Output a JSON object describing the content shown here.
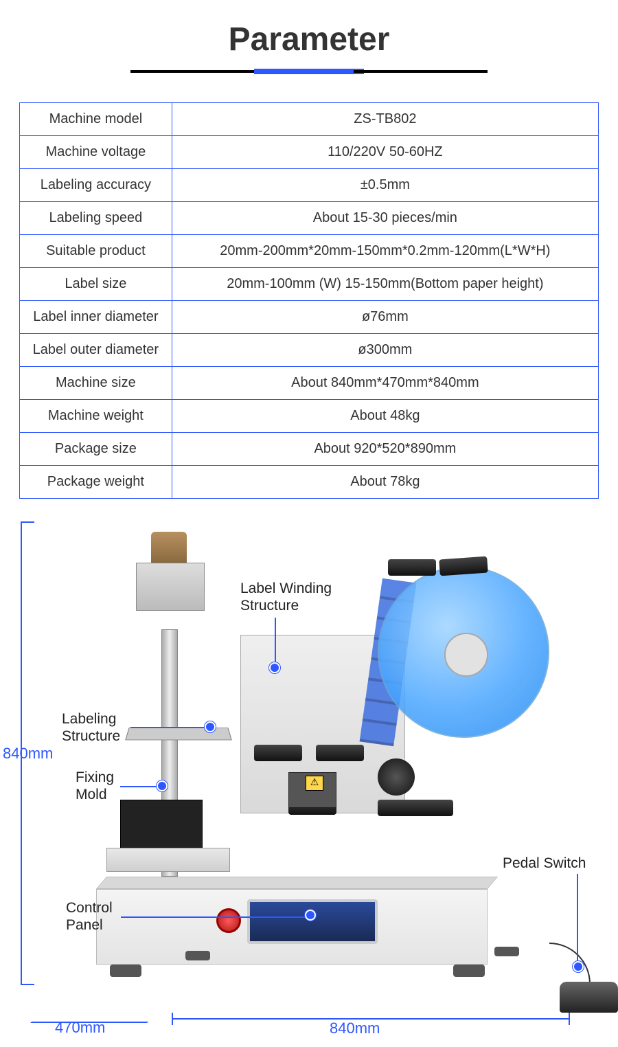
{
  "title": "Parameter",
  "accent_color": "#2f57ff",
  "table": {
    "border_color": "#2f57ff",
    "rows": [
      {
        "param": "Machine model",
        "value": "ZS-TB802"
      },
      {
        "param": "Machine voltage",
        "value": "110/220V 50-60HZ"
      },
      {
        "param": "Labeling accuracy",
        "value": "±0.5mm"
      },
      {
        "param": "Labeling speed",
        "value": "About 15-30 pieces/min"
      },
      {
        "param": "Suitable product",
        "value": "20mm-200mm*20mm-150mm*0.2mm-120mm(L*W*H)"
      },
      {
        "param": "Label size",
        "value": "20mm-100mm (W) 15-150mm(Bottom paper height)"
      },
      {
        "param": "Label inner diameter",
        "value": "ø76mm"
      },
      {
        "param": "Label outer diameter",
        "value": "ø300mm"
      },
      {
        "param": "Machine size",
        "value": "About 840mm*470mm*840mm"
      },
      {
        "param": "Machine weight",
        "value": "About 48kg"
      },
      {
        "param": "Package size",
        "value": "About 920*520*890mm"
      },
      {
        "param": "Package weight",
        "value": "About 78kg"
      }
    ]
  },
  "diagram": {
    "dimensions": {
      "height": "840mm",
      "depth": "470mm",
      "width": "840mm"
    },
    "callouts": {
      "winding": "Label Winding\nStructure",
      "labeling": "Labeling\nStructure",
      "mold": "Fixing\nMold",
      "panel": "Control\nPanel",
      "pedal": "Pedal Switch"
    },
    "colors": {
      "reel": "#4aa6ff",
      "panel": "#1a2a55",
      "estop": "#d62424",
      "base": "#e8e8e8",
      "callout_line": "#2f57ff"
    }
  }
}
